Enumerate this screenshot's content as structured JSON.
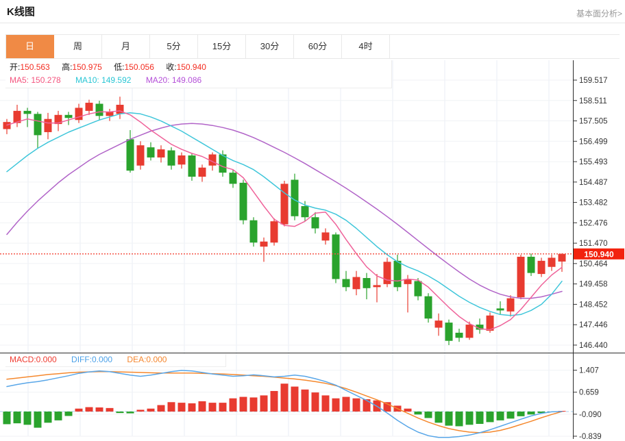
{
  "header": {
    "title": "K线图",
    "link_label": "基本面分析>"
  },
  "tabs": {
    "items": [
      "日",
      "周",
      "月",
      "5分",
      "15分",
      "30分",
      "60分",
      "4时"
    ],
    "active": "日"
  },
  "legend_ohlc": {
    "open_label": "开:",
    "open_value": "150.563",
    "high_label": "高:",
    "high_value": "150.975",
    "low_label": "低:",
    "low_value": "150.056",
    "close_label": "收:",
    "close_value": "150.940"
  },
  "legend_ma": {
    "ma5": "MA5: 150.278",
    "ma10": "MA10: 149.592",
    "ma20": "MA20: 149.086"
  },
  "legend_macd": {
    "macd": "MACD:0.000",
    "diff": "DIFF:0.000",
    "dea": "DEA:0.000"
  },
  "price_tag": "150.940",
  "colors": {
    "up": "#e83b30",
    "down": "#2aa32d",
    "ma5": "#ef639a",
    "ma10": "#3fc6da",
    "ma20": "#b164c8",
    "diff": "#58a6e8",
    "dea": "#f5882d",
    "tab_active_bg": "#f08a45",
    "price_line": "#f4564a",
    "badge_bg": "#f2220e",
    "grid": "#f0f2f5",
    "vgrid": "#e9eef6",
    "axis": "#333333",
    "zero_dash": "#a8cdec"
  },
  "chart_data": {
    "type": "candlestick",
    "title": "K线图 (USD/JPY daily K-line with MA5/MA10/MA20 and MACD)",
    "main": {
      "y_ticks": [
        159.517,
        158.511,
        157.505,
        156.499,
        155.493,
        154.487,
        153.482,
        152.476,
        151.47,
        150.464,
        149.458,
        148.452,
        147.446,
        146.44
      ],
      "last_price": 150.94,
      "candles": [
        [
          157.1,
          157.6,
          156.85,
          157.45
        ],
        [
          157.4,
          158.3,
          157.2,
          158.0
        ],
        [
          158.0,
          158.15,
          157.2,
          157.85
        ],
        [
          157.85,
          157.95,
          156.15,
          156.8
        ],
        [
          156.95,
          157.9,
          156.6,
          157.6
        ],
        [
          157.35,
          158.0,
          157.0,
          157.8
        ],
        [
          157.8,
          157.95,
          157.3,
          157.65
        ],
        [
          157.55,
          158.35,
          157.4,
          158.15
        ],
        [
          158.0,
          158.55,
          157.8,
          158.4
        ],
        [
          158.35,
          158.5,
          157.55,
          157.75
        ],
        [
          157.75,
          158.1,
          157.5,
          157.95
        ],
        [
          157.85,
          158.7,
          157.6,
          158.3
        ],
        [
          156.6,
          157.05,
          154.95,
          155.05
        ],
        [
          155.3,
          156.5,
          155.1,
          156.3
        ],
        [
          156.2,
          156.45,
          155.55,
          155.7
        ],
        [
          155.7,
          156.3,
          155.45,
          156.1
        ],
        [
          156.05,
          156.2,
          155.1,
          155.3
        ],
        [
          155.35,
          155.95,
          155.15,
          155.8
        ],
        [
          155.8,
          155.9,
          154.55,
          154.75
        ],
        [
          154.75,
          155.35,
          154.5,
          155.2
        ],
        [
          155.3,
          155.95,
          155.05,
          155.85
        ],
        [
          155.85,
          156.05,
          154.75,
          154.95
        ],
        [
          154.95,
          155.1,
          154.2,
          154.4
        ],
        [
          154.45,
          154.6,
          152.4,
          152.6
        ],
        [
          152.6,
          152.75,
          151.3,
          151.5
        ],
        [
          151.3,
          151.75,
          150.55,
          151.55
        ],
        [
          151.5,
          152.7,
          151.35,
          152.55
        ],
        [
          152.4,
          154.55,
          152.3,
          154.4
        ],
        [
          154.6,
          154.9,
          152.6,
          152.8
        ],
        [
          153.3,
          153.55,
          152.55,
          152.75
        ],
        [
          152.75,
          153.0,
          151.95,
          152.2
        ],
        [
          151.6,
          152.2,
          151.4,
          152.0
        ],
        [
          151.9,
          152.0,
          149.5,
          149.7
        ],
        [
          149.7,
          150.1,
          149.1,
          149.3
        ],
        [
          149.2,
          150.1,
          148.9,
          149.8
        ],
        [
          149.75,
          150.0,
          148.7,
          149.25
        ],
        [
          149.3,
          149.95,
          148.55,
          149.4
        ],
        [
          149.45,
          150.75,
          149.3,
          150.55
        ],
        [
          150.6,
          150.9,
          149.1,
          149.3
        ],
        [
          149.45,
          149.9,
          148.05,
          149.7
        ],
        [
          149.6,
          149.75,
          148.65,
          148.85
        ],
        [
          148.85,
          149.0,
          147.55,
          147.75
        ],
        [
          147.3,
          148.0,
          146.9,
          147.65
        ],
        [
          147.55,
          147.7,
          146.44,
          146.65
        ],
        [
          147.05,
          147.25,
          146.6,
          146.8
        ],
        [
          146.8,
          147.6,
          146.7,
          147.45
        ],
        [
          147.45,
          147.75,
          147.0,
          147.2
        ],
        [
          147.15,
          148.05,
          147.05,
          147.9
        ],
        [
          148.25,
          148.6,
          147.95,
          148.15
        ],
        [
          148.1,
          148.9,
          147.85,
          148.75
        ],
        [
          148.8,
          150.9,
          148.7,
          150.8
        ],
        [
          150.8,
          150.95,
          149.85,
          150.0
        ],
        [
          149.95,
          150.75,
          149.8,
          150.6
        ],
        [
          150.3,
          150.9,
          150.1,
          150.75
        ],
        [
          150.563,
          150.975,
          150.056,
          150.94
        ]
      ],
      "ma5": [
        157.3,
        157.45,
        157.6,
        157.5,
        157.4,
        157.4,
        157.55,
        157.7,
        157.85,
        157.95,
        157.95,
        158.0,
        157.8,
        157.45,
        157.05,
        156.7,
        156.35,
        156.1,
        155.9,
        155.75,
        155.5,
        155.25,
        155.1,
        154.7,
        154.0,
        153.3,
        152.65,
        152.35,
        152.3,
        152.55,
        152.95,
        153.0,
        152.4,
        151.65,
        150.95,
        150.3,
        149.85,
        149.65,
        149.6,
        149.7,
        149.65,
        149.3,
        148.8,
        148.3,
        147.85,
        147.5,
        147.25,
        147.2,
        147.4,
        147.7,
        148.2,
        148.8,
        149.4,
        149.9,
        150.28
      ],
      "ma10": [
        155.0,
        155.4,
        155.8,
        156.15,
        156.45,
        156.7,
        156.95,
        157.15,
        157.35,
        157.55,
        157.7,
        157.85,
        157.9,
        157.85,
        157.7,
        157.5,
        157.25,
        157.0,
        156.7,
        156.4,
        156.1,
        155.8,
        155.55,
        155.35,
        155.1,
        154.75,
        154.35,
        153.95,
        153.6,
        153.35,
        153.2,
        153.1,
        152.9,
        152.6,
        152.2,
        151.75,
        151.3,
        150.9,
        150.55,
        150.3,
        150.1,
        149.85,
        149.55,
        149.2,
        148.85,
        148.55,
        148.3,
        148.1,
        147.95,
        147.9,
        147.95,
        148.15,
        148.45,
        148.95,
        149.59
      ],
      "ma20": [
        151.9,
        152.5,
        153.05,
        153.55,
        154.0,
        154.45,
        154.85,
        155.2,
        155.55,
        155.85,
        156.1,
        156.35,
        156.6,
        156.8,
        157.0,
        157.15,
        157.28,
        157.35,
        157.38,
        157.35,
        157.28,
        157.18,
        157.05,
        156.88,
        156.68,
        156.45,
        156.2,
        155.95,
        155.68,
        155.4,
        155.1,
        154.8,
        154.5,
        154.18,
        153.85,
        153.5,
        153.15,
        152.78,
        152.4,
        152.0,
        151.6,
        151.2,
        150.8,
        150.42,
        150.05,
        149.7,
        149.4,
        149.15,
        148.95,
        148.82,
        148.75,
        148.75,
        148.82,
        148.95,
        149.09
      ]
    },
    "macd": {
      "y_ticks": [
        1.407,
        0.659,
        -0.09,
        -0.839
      ],
      "hist": [
        -0.43,
        -0.4,
        -0.45,
        -0.55,
        -0.38,
        -0.3,
        -0.15,
        0.1,
        0.15,
        0.14,
        0.12,
        -0.05,
        -0.06,
        0.06,
        0.1,
        0.22,
        0.32,
        0.3,
        0.28,
        0.35,
        0.3,
        0.3,
        0.45,
        0.5,
        0.48,
        0.55,
        0.7,
        0.95,
        0.85,
        0.75,
        0.65,
        0.55,
        0.45,
        0.5,
        0.45,
        0.42,
        0.38,
        0.32,
        0.2,
        0.1,
        -0.1,
        -0.22,
        -0.38,
        -0.48,
        -0.5,
        -0.45,
        -0.42,
        -0.36,
        -0.3,
        -0.24,
        -0.16,
        -0.1,
        -0.05,
        -0.02,
        0.0
      ],
      "diff": [
        0.85,
        0.92,
        0.98,
        1.02,
        1.08,
        1.15,
        1.22,
        1.3,
        1.35,
        1.38,
        1.36,
        1.3,
        1.24,
        1.2,
        1.24,
        1.3,
        1.36,
        1.4,
        1.38,
        1.33,
        1.28,
        1.24,
        1.2,
        1.22,
        1.25,
        1.22,
        1.18,
        1.2,
        1.24,
        1.2,
        1.12,
        1.02,
        0.9,
        0.72,
        0.55,
        0.38,
        0.18,
        -0.05,
        -0.3,
        -0.52,
        -0.7,
        -0.82,
        -0.88,
        -0.88,
        -0.85,
        -0.8,
        -0.72,
        -0.62,
        -0.5,
        -0.38,
        -0.26,
        -0.15,
        -0.06,
        -0.01,
        0.0
      ],
      "dea": [
        1.1,
        1.14,
        1.18,
        1.22,
        1.26,
        1.29,
        1.32,
        1.34,
        1.35,
        1.36,
        1.36,
        1.35,
        1.34,
        1.33,
        1.32,
        1.31,
        1.31,
        1.31,
        1.31,
        1.3,
        1.29,
        1.28,
        1.26,
        1.24,
        1.22,
        1.2,
        1.17,
        1.14,
        1.11,
        1.07,
        1.02,
        0.96,
        0.88,
        0.78,
        0.66,
        0.53,
        0.4,
        0.26,
        0.1,
        -0.06,
        -0.22,
        -0.36,
        -0.48,
        -0.58,
        -0.65,
        -0.7,
        -0.72,
        -0.7,
        -0.64,
        -0.55,
        -0.44,
        -0.33,
        -0.21,
        -0.1,
        0.0
      ]
    }
  }
}
